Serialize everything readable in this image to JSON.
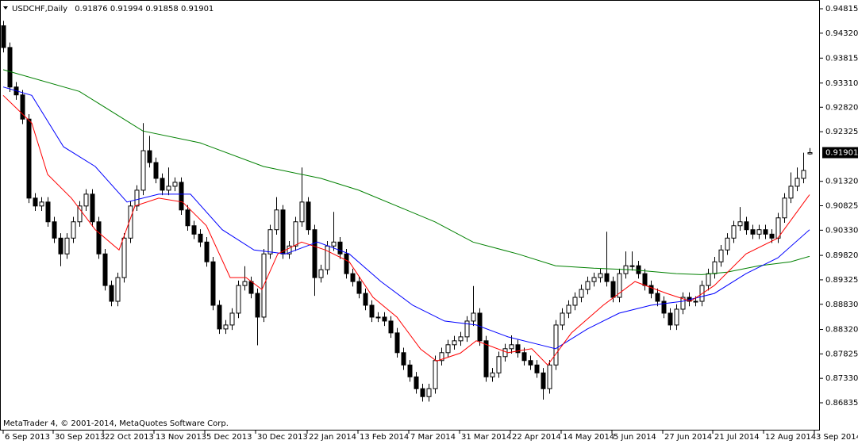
{
  "chart_data": {
    "type": "candlestick",
    "title": "USDCHF,Daily",
    "footer": "MetaTrader 4, © 2001-2014, MetaQuotes Software Corp.",
    "bull_color": "#ffffff",
    "bear_color": "#000000",
    "open": [
      0.9447,
      0.9403,
      0.9323,
      0.9307,
      0.9258,
      0.9098,
      0.9082,
      0.909,
      0.905,
      0.9017,
      0.8985,
      0.9017,
      0.905,
      0.9082,
      0.9106,
      0.905,
      0.8985,
      0.8921,
      0.8889,
      0.8937,
      0.9017,
      0.9082,
      0.9114,
      0.9194,
      0.917,
      0.9138,
      0.9114,
      0.9122,
      0.913,
      0.9074,
      0.9042,
      0.9025,
      0.9009,
      0.8969,
      0.8881,
      0.8833,
      0.8841,
      0.8865,
      0.8921,
      0.8929,
      0.8905,
      0.8857,
      0.8985,
      0.9034,
      0.9074,
      0.8985,
      0.9001,
      0.905,
      0.909,
      0.9034,
      0.8937,
      0.8953,
      0.9001,
      0.9009,
      0.8985,
      0.8945,
      0.8929,
      0.8905,
      0.8881,
      0.8857,
      0.8857,
      0.8849,
      0.8825,
      0.8785,
      0.876,
      0.8736,
      0.8712,
      0.8696,
      0.8712,
      0.8769,
      0.8785,
      0.8801,
      0.8809,
      0.8817,
      0.8849,
      0.8865,
      0.8809,
      0.8736,
      0.8744,
      0.8777,
      0.8793,
      0.8801,
      0.8785,
      0.8769,
      0.876,
      0.8744,
      0.8712,
      0.876,
      0.8841,
      0.8865,
      0.8881,
      0.8897,
      0.8913,
      0.8929,
      0.8937,
      0.8945,
      0.8929,
      0.8897,
      0.8945,
      0.8961,
      0.8961,
      0.8945,
      0.8921,
      0.8905,
      0.8889,
      0.8865,
      0.8841,
      0.8873,
      0.8897,
      0.8889,
      0.8889,
      0.8921,
      0.8945,
      0.8969,
      0.8993,
      0.9017,
      0.9042,
      0.905,
      0.9034,
      0.9025,
      0.9034,
      0.9025,
      0.9017,
      0.9058,
      0.9098,
      0.9122,
      0.9138,
      0.91876
    ],
    "high": [
      0.9457,
      0.9413,
      0.9333,
      0.9317,
      0.9268,
      0.9108,
      0.91,
      0.91,
      0.906,
      0.9027,
      0.9027,
      0.906,
      0.9092,
      0.9116,
      0.9116,
      0.906,
      0.8995,
      0.8931,
      0.8947,
      0.9027,
      0.9092,
      0.9124,
      0.925,
      0.9224,
      0.918,
      0.9148,
      0.916,
      0.914,
      0.914,
      0.9084,
      0.9052,
      0.9035,
      0.9019,
      0.8979,
      0.8891,
      0.8851,
      0.8875,
      0.8931,
      0.896,
      0.8939,
      0.8915,
      0.8995,
      0.9044,
      0.91,
      0.9084,
      0.9011,
      0.906,
      0.916,
      0.91,
      0.9044,
      0.8963,
      0.9011,
      0.907,
      0.9019,
      0.8995,
      0.8955,
      0.8939,
      0.8915,
      0.8891,
      0.8867,
      0.8867,
      0.8859,
      0.8835,
      0.8795,
      0.877,
      0.8746,
      0.8722,
      0.8722,
      0.8779,
      0.8795,
      0.8811,
      0.8819,
      0.8827,
      0.8859,
      0.892,
      0.8875,
      0.8819,
      0.8754,
      0.8787,
      0.8803,
      0.882,
      0.8811,
      0.8795,
      0.8779,
      0.877,
      0.8754,
      0.877,
      0.8851,
      0.8875,
      0.8891,
      0.8907,
      0.8923,
      0.8939,
      0.8947,
      0.8955,
      0.903,
      0.8939,
      0.8955,
      0.899,
      0.899,
      0.8971,
      0.8955,
      0.8931,
      0.8915,
      0.8899,
      0.8875,
      0.8883,
      0.8907,
      0.8907,
      0.8899,
      0.8931,
      0.8955,
      0.8979,
      0.9003,
      0.9027,
      0.9052,
      0.908,
      0.906,
      0.9044,
      0.9044,
      0.9044,
      0.9035,
      0.9068,
      0.9108,
      0.915,
      0.916,
      0.919,
      0.91994
    ],
    "low": [
      0.9393,
      0.9313,
      0.9297,
      0.9248,
      0.9088,
      0.9072,
      0.9072,
      0.904,
      0.9007,
      0.896,
      0.8975,
      0.9007,
      0.904,
      0.9072,
      0.904,
      0.8975,
      0.8911,
      0.8879,
      0.8879,
      0.8927,
      0.9007,
      0.9072,
      0.9104,
      0.916,
      0.9128,
      0.9104,
      0.9104,
      0.9112,
      0.9064,
      0.9032,
      0.9015,
      0.8999,
      0.8959,
      0.8871,
      0.8823,
      0.8823,
      0.8831,
      0.8855,
      0.8911,
      0.8895,
      0.88,
      0.8847,
      0.8975,
      0.9024,
      0.8975,
      0.8975,
      0.8991,
      0.904,
      0.9024,
      0.89,
      0.8927,
      0.8943,
      0.8991,
      0.8975,
      0.8935,
      0.8919,
      0.8895,
      0.8871,
      0.8847,
      0.8847,
      0.8839,
      0.8815,
      0.8775,
      0.875,
      0.8726,
      0.8702,
      0.8686,
      0.8686,
      0.8702,
      0.8759,
      0.8775,
      0.8791,
      0.8799,
      0.8807,
      0.8839,
      0.8799,
      0.8726,
      0.8726,
      0.8734,
      0.8767,
      0.8783,
      0.8775,
      0.8759,
      0.875,
      0.8734,
      0.869,
      0.8702,
      0.875,
      0.8831,
      0.8855,
      0.8871,
      0.8887,
      0.8903,
      0.8919,
      0.8927,
      0.8919,
      0.8887,
      0.8887,
      0.8935,
      0.8951,
      0.8935,
      0.8911,
      0.8895,
      0.8879,
      0.8855,
      0.8831,
      0.8831,
      0.8863,
      0.8879,
      0.8879,
      0.8879,
      0.8911,
      0.8935,
      0.8959,
      0.8983,
      0.9007,
      0.9032,
      0.9024,
      0.9015,
      0.9015,
      0.9015,
      0.9007,
      0.9007,
      0.9048,
      0.9088,
      0.9112,
      0.9128,
      0.91858
    ],
    "close": [
      0.9403,
      0.9323,
      0.9307,
      0.9258,
      0.9098,
      0.9082,
      0.909,
      0.905,
      0.9017,
      0.8985,
      0.9017,
      0.905,
      0.9082,
      0.9106,
      0.905,
      0.8985,
      0.8921,
      0.8889,
      0.8937,
      0.9017,
      0.9082,
      0.9114,
      0.9194,
      0.917,
      0.9138,
      0.9114,
      0.9122,
      0.913,
      0.9074,
      0.9042,
      0.9025,
      0.9009,
      0.8969,
      0.8881,
      0.8833,
      0.8841,
      0.8865,
      0.8921,
      0.8929,
      0.8905,
      0.8857,
      0.8985,
      0.9034,
      0.9074,
      0.8985,
      0.9001,
      0.905,
      0.909,
      0.9034,
      0.8937,
      0.8953,
      0.9001,
      0.9009,
      0.8985,
      0.8945,
      0.8929,
      0.8905,
      0.8881,
      0.8857,
      0.8857,
      0.8849,
      0.8825,
      0.8785,
      0.876,
      0.8736,
      0.8712,
      0.8696,
      0.8712,
      0.8769,
      0.8785,
      0.8801,
      0.8809,
      0.8817,
      0.8849,
      0.8865,
      0.8809,
      0.8736,
      0.8744,
      0.8777,
      0.8793,
      0.8801,
      0.8785,
      0.8769,
      0.876,
      0.8744,
      0.8712,
      0.876,
      0.8841,
      0.8865,
      0.8881,
      0.8897,
      0.8913,
      0.8929,
      0.8937,
      0.8945,
      0.8929,
      0.8897,
      0.8945,
      0.8961,
      0.8961,
      0.8945,
      0.8921,
      0.8905,
      0.8889,
      0.8865,
      0.8841,
      0.8873,
      0.8897,
      0.8889,
      0.8889,
      0.8921,
      0.8945,
      0.8969,
      0.8993,
      0.9017,
      0.9042,
      0.905,
      0.9034,
      0.9025,
      0.9034,
      0.9025,
      0.9017,
      0.9058,
      0.9098,
      0.9122,
      0.9138,
      0.9154,
      0.91901
    ],
    "series": [
      {
        "color": "#008000",
        "x": [
          0,
          12,
          22,
          31,
          41,
          50,
          56,
          62,
          68,
          74,
          81,
          87,
          93,
          99,
          106,
          110,
          114,
          119,
          124,
          127
        ],
        "values": [
          0.9358,
          0.9314,
          0.9234,
          0.921,
          0.9162,
          0.9138,
          0.9114,
          0.9082,
          0.905,
          0.9009,
          0.8985,
          0.8961,
          0.8956,
          0.8953,
          0.8945,
          0.8943,
          0.8948,
          0.8961,
          0.8969,
          0.898
        ]
      },
      {
        "color": "#0000ff",
        "x": [
          0,
          4.5,
          9.5,
          14.5,
          19.5,
          24.5,
          29.5,
          34.5,
          39.5,
          44.5,
          49.5,
          54.5,
          59.5,
          64.5,
          69.5,
          74.5,
          79.5,
          84.5,
          87,
          92,
          97,
          102,
          107,
          112,
          117,
          122,
          127
        ],
        "values": [
          0.9323,
          0.9306,
          0.9202,
          0.9162,
          0.909,
          0.9106,
          0.9106,
          0.9034,
          0.8993,
          0.8985,
          0.9009,
          0.8985,
          0.8929,
          0.8881,
          0.8849,
          0.8841,
          0.8817,
          0.8801,
          0.8793,
          0.8833,
          0.8865,
          0.8881,
          0.8889,
          0.8905,
          0.8945,
          0.8977,
          0.9034
        ]
      },
      {
        "color": "#ff0000",
        "x": [
          0,
          4.5,
          7,
          10.75,
          14.5,
          18.25,
          20.75,
          24.5,
          28.25,
          32,
          35.75,
          38.25,
          40.75,
          43.25,
          47,
          50.75,
          54.5,
          58.25,
          62,
          65.75,
          68.25,
          72,
          74.5,
          79.5,
          83.25,
          85.75,
          89.5,
          94.5,
          99.5,
          104.5,
          108.25,
          112,
          117,
          122,
          127
        ],
        "values": [
          0.9306,
          0.925,
          0.9146,
          0.9098,
          0.9034,
          0.8993,
          0.9082,
          0.9098,
          0.909,
          0.9042,
          0.8937,
          0.8937,
          0.8913,
          0.8985,
          0.9009,
          0.8993,
          0.8969,
          0.8897,
          0.8857,
          0.8792,
          0.8768,
          0.8784,
          0.8809,
          0.8785,
          0.8793,
          0.876,
          0.8825,
          0.8881,
          0.8929,
          0.8905,
          0.8889,
          0.8921,
          0.8985,
          0.9017,
          0.9105
        ]
      }
    ],
    "xlim": [
      -0.5,
      128.625
    ],
    "xticks": [
      {
        "value": 0,
        "label": "6 Sep 2013"
      },
      {
        "value": 7.875,
        "label": "30 Sep 2013"
      },
      {
        "value": 15.75,
        "label": "22 Oct 2013"
      },
      {
        "value": 23.75,
        "label": "13 Nov 2013"
      },
      {
        "value": 31.75,
        "label": "5 Dec 2013"
      },
      {
        "value": 39.75,
        "label": "30 Dec 2013"
      },
      {
        "value": 47.875,
        "label": "22 Jan 2014"
      },
      {
        "value": 55.875,
        "label": "13 Feb 2014"
      },
      {
        "value": 63.875,
        "label": "7 Mar 2014"
      },
      {
        "value": 71.875,
        "label": "31 Mar 2014"
      },
      {
        "value": 79.875,
        "label": "22 Apr 2014"
      },
      {
        "value": 87.875,
        "label": "14 May 2014"
      },
      {
        "value": 95.875,
        "label": "5 Jun 2014"
      },
      {
        "value": 103.875,
        "label": "27 Jun 2014"
      },
      {
        "value": 111.75,
        "label": "21 Jul 2014"
      },
      {
        "value": 119.75,
        "label": "12 Aug 2014"
      },
      {
        "value": 127.75,
        "label": "3 Sep 2014"
      }
    ],
    "ylim": [
      0.86273,
      0.94992
    ],
    "yticks": [
      0.94815,
      {
        "value": 0.9432,
        "label": "0.94320"
      },
      0.93815,
      {
        "value": 0.9331,
        "label": "0.93310"
      },
      {
        "value": 0.9282,
        "label": "0.92820"
      },
      0.92325,
      {
        "value": 0.9132,
        "label": "0.91320"
      },
      0.90825,
      {
        "value": 0.9033,
        "label": "0.90330"
      },
      {
        "value": 0.8982,
        "label": "0.89820"
      },
      0.89325,
      {
        "value": 0.8883,
        "label": "0.88830"
      },
      {
        "value": 0.8832,
        "label": "0.88320"
      },
      0.87825,
      {
        "value": 0.8733,
        "label": "0.87330"
      },
      0.86835
    ]
  }
}
